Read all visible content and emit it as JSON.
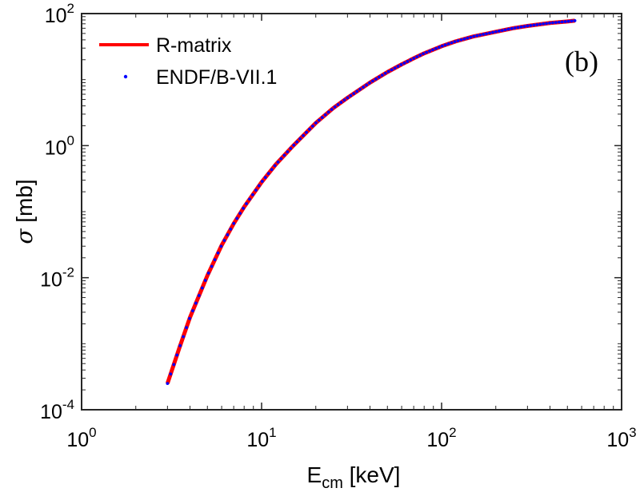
{
  "chart_data": {
    "type": "line",
    "x_scale": "log",
    "y_scale": "log",
    "xlabel": {
      "main": "E",
      "sub": "cm",
      "unit": " [keV]"
    },
    "ylabel": {
      "symbol": "σ",
      "unit": " [mb]"
    },
    "xlim": [
      1,
      1000
    ],
    "ylim": [
      0.0001,
      100
    ],
    "x_ticks": [
      {
        "value": 1,
        "base": "10",
        "exp": "0"
      },
      {
        "value": 10,
        "base": "10",
        "exp": "1"
      },
      {
        "value": 100,
        "base": "10",
        "exp": "2"
      },
      {
        "value": 1000,
        "base": "10",
        "exp": "3"
      }
    ],
    "y_ticks": [
      {
        "value": 0.0001,
        "base": "10",
        "exp": "-4"
      },
      {
        "value": 0.01,
        "base": "10",
        "exp": "-2"
      },
      {
        "value": 1,
        "base": "10",
        "exp": "0"
      },
      {
        "value": 100,
        "base": "10",
        "exp": "2"
      }
    ],
    "grid": false,
    "legend": "top-left",
    "annotation": "(b)",
    "series": [
      {
        "name": "R-matrix",
        "style": "line",
        "color": "#ff0000",
        "x": [
          3.0,
          3.5,
          4,
          5,
          6,
          7,
          8,
          10,
          12,
          15,
          20,
          25,
          30,
          40,
          50,
          60,
          70,
          80,
          100,
          120,
          150,
          200,
          250,
          300,
          400,
          500,
          550
        ],
        "y": [
          0.00025,
          0.00088,
          0.0025,
          0.0108,
          0.031,
          0.066,
          0.118,
          0.28,
          0.52,
          1.0,
          2.2,
          3.7,
          5.3,
          9.0,
          13.0,
          17.0,
          21.0,
          25.0,
          32.0,
          38.0,
          45.0,
          53.0,
          60.0,
          65.0,
          72.0,
          76.0,
          78.0
        ]
      },
      {
        "name": "ENDF/B-VII.1",
        "style": "dots",
        "color": "#0000ff",
        "x": [
          3.0,
          3.5,
          4,
          5,
          6,
          7,
          8,
          10,
          12,
          15,
          20,
          25,
          30,
          40,
          50,
          60,
          70,
          80,
          100,
          120,
          150,
          200,
          250,
          300,
          400,
          500,
          550
        ],
        "y": [
          0.00025,
          0.00088,
          0.0025,
          0.0108,
          0.031,
          0.066,
          0.118,
          0.28,
          0.52,
          1.0,
          2.2,
          3.7,
          5.3,
          9.0,
          13.0,
          17.0,
          21.0,
          25.0,
          32.0,
          38.0,
          45.0,
          53.0,
          60.0,
          65.0,
          72.0,
          76.0,
          78.0
        ]
      }
    ]
  }
}
